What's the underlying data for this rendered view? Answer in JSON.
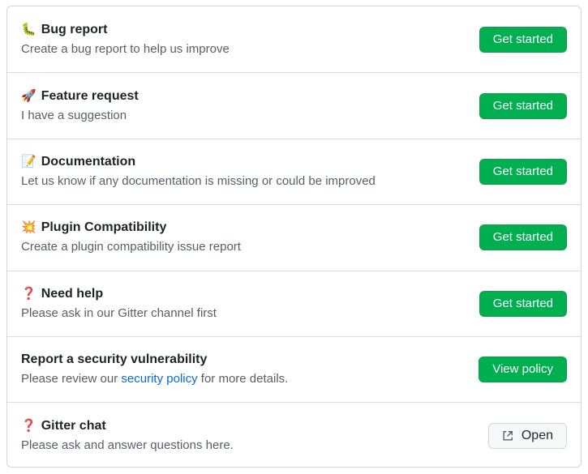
{
  "templates": [
    {
      "emoji": "🐛",
      "title": "Bug report",
      "description": "Create a bug report to help us improve",
      "button": "Get started"
    },
    {
      "emoji": "🚀",
      "title": "Feature request",
      "description": "I have a suggestion",
      "button": "Get started"
    },
    {
      "emoji": "📝",
      "title": "Documentation",
      "description": "Let us know if any documentation is missing or could be improved",
      "button": "Get started"
    },
    {
      "emoji": "💥",
      "title": "Plugin Compatibility",
      "description": "Create a plugin compatibility issue report",
      "button": "Get started"
    },
    {
      "emoji": "❓",
      "title": "Need help",
      "description": "Please ask in our Gitter channel first",
      "button": "Get started"
    }
  ],
  "security": {
    "title": "Report a security vulnerability",
    "desc_before": "Please review our ",
    "link": "security policy",
    "desc_after": " for more details.",
    "button": "View policy"
  },
  "gitter": {
    "emoji": "❓",
    "title": "Gitter chat",
    "description": "Please ask and answer questions here.",
    "button": "Open",
    "icon": "external-link-icon"
  }
}
